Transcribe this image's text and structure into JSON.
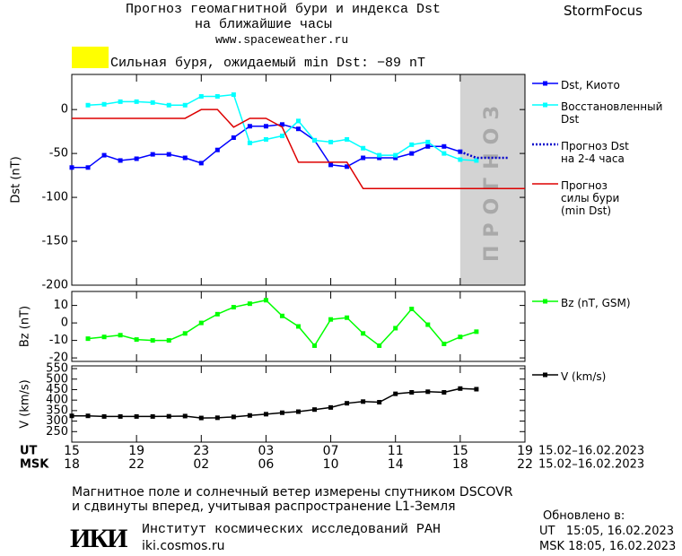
{
  "header": {
    "title": "Прогноз геомагнитной бури и индекса Dst",
    "subtitle": "на ближайшие часы",
    "url": "www.spaceweather.ru",
    "brand": "StormFocus",
    "alert": "Сильная буря, ожидаемый min Dst: −89 nT",
    "alert_color": "#ffff00"
  },
  "chart_data": [
    {
      "type": "line",
      "ylabel": "Dst (nT)",
      "xlim": [
        0,
        28
      ],
      "ylim": [
        -200,
        40
      ],
      "xticks": [
        0,
        4,
        8,
        12,
        16,
        20,
        24,
        28
      ],
      "yticks": [
        0,
        -50,
        -100,
        -150,
        -200
      ],
      "forecast_region": {
        "xlim": [
          24,
          28
        ],
        "label": "ПРОГНОЗ",
        "color": "#d3d3d3"
      },
      "series": [
        {
          "name": "Dst, Киото",
          "color": "#0000ff",
          "marker": "square",
          "dash": false,
          "x": [
            0,
            1,
            2,
            3,
            4,
            5,
            6,
            7,
            8,
            9,
            10,
            11,
            12,
            13,
            14,
            15,
            16,
            17,
            18,
            19,
            20,
            21,
            22,
            23,
            24
          ],
          "values": [
            -66,
            -66,
            -52,
            -58,
            -56,
            -51,
            -51,
            -55,
            -61,
            -46,
            -32,
            -19,
            -19,
            -17,
            -22,
            -35,
            -63,
            -65,
            -55,
            -55,
            -55,
            -50,
            -42,
            -42,
            -48
          ]
        },
        {
          "name": "Восстановленный\nDst",
          "color": "#00ffff",
          "marker": "square",
          "dash": false,
          "x": [
            1,
            2,
            3,
            4,
            5,
            6,
            7,
            8,
            9,
            10,
            11,
            12,
            13,
            14,
            15,
            16,
            17,
            18,
            19,
            20,
            21,
            22,
            23,
            24,
            25
          ],
          "values": [
            5,
            6,
            9,
            9,
            8,
            5,
            5,
            15,
            15,
            17,
            -38,
            -34,
            -30,
            -13,
            -35,
            -37,
            -34,
            -44,
            -52,
            -52,
            -40,
            -37,
            -50,
            -57,
            -58
          ]
        },
        {
          "name": "Прогноз Dst\nна 2-4 часа",
          "color": "#0000cc",
          "marker": "none",
          "dash": true,
          "x": [
            24,
            25,
            26,
            27
          ],
          "values": [
            -48,
            -55,
            -55,
            -55
          ]
        },
        {
          "name": "Прогноз\nсилы бури\n(min Dst)",
          "color": "#dd0000",
          "marker": "none",
          "dash": false,
          "x": [
            0,
            7,
            8,
            9,
            10,
            11,
            12,
            13,
            14,
            17,
            18,
            28
          ],
          "values": [
            -10,
            -10,
            0,
            0,
            -20,
            -10,
            -10,
            -20,
            -60,
            -60,
            -90,
            -90
          ]
        }
      ]
    },
    {
      "type": "line",
      "ylabel": "Bz (nT)",
      "xlim": [
        0,
        28
      ],
      "ylim": [
        -22,
        18
      ],
      "xticks": [
        0,
        4,
        8,
        12,
        16,
        20,
        24,
        28
      ],
      "yticks": [
        10,
        0,
        -10,
        -20
      ],
      "series": [
        {
          "name": "Bz (nT, GSM)",
          "color": "#00ff00",
          "marker": "square",
          "dash": false,
          "x": [
            1,
            2,
            3,
            4,
            5,
            6,
            7,
            8,
            9,
            10,
            11,
            12,
            13,
            14,
            15,
            16,
            17,
            18,
            19,
            20,
            21,
            22,
            23,
            24,
            25
          ],
          "values": [
            -9,
            -8,
            -7,
            -9.5,
            -10,
            -10,
            -6,
            0,
            5,
            9,
            11,
            13,
            4,
            -2,
            -13,
            2,
            3,
            -6,
            -13,
            -3,
            8,
            -1,
            -12,
            -8,
            -5
          ]
        }
      ]
    },
    {
      "type": "line",
      "ylabel": "V (km/s)",
      "xlim": [
        0,
        28
      ],
      "ylim": [
        200,
        563
      ],
      "xticks": [
        {
          "value": 0,
          "label": "15"
        },
        {
          "value": 4,
          "label": "19"
        },
        {
          "value": 8,
          "label": "23"
        },
        {
          "value": 12,
          "label": "03"
        },
        {
          "value": 16,
          "label": "07"
        },
        {
          "value": 20,
          "label": "11"
        },
        {
          "value": 24,
          "label": "15"
        },
        {
          "value": 28,
          "label": "19"
        }
      ],
      "xticks_msk": [
        {
          "value": 0,
          "label": "18"
        },
        {
          "value": 4,
          "label": "22"
        },
        {
          "value": 8,
          "label": "02"
        },
        {
          "value": 12,
          "label": "06"
        },
        {
          "value": 16,
          "label": "10"
        },
        {
          "value": 20,
          "label": "14"
        },
        {
          "value": 24,
          "label": "18"
        },
        {
          "value": 28,
          "label": "22"
        }
      ],
      "x_label": "UT",
      "x2_label": "MSK",
      "date_range": "15.02–16.02.2023",
      "date_range_msk": "15.02–16.02.2023",
      "yticks": [
        550,
        500,
        450,
        400,
        350,
        300,
        250
      ],
      "series": [
        {
          "name": "V (km/s)",
          "color": "#000000",
          "marker": "square",
          "dash": false,
          "x": [
            0,
            1,
            2,
            3,
            4,
            5,
            6,
            7,
            8,
            9,
            10,
            11,
            12,
            13,
            14,
            15,
            16,
            17,
            18,
            19,
            20,
            21,
            22,
            23,
            24,
            25
          ],
          "values": [
            325,
            325,
            322,
            322,
            322,
            322,
            323,
            324,
            315,
            316,
            320,
            327,
            333,
            340,
            345,
            355,
            365,
            385,
            393,
            390,
            430,
            437,
            440,
            437,
            455,
            452
          ]
        }
      ]
    }
  ],
  "footer": {
    "note1": "Магнитное поле и солнечный ветер измерены спутником DSCOVR",
    "note2": "и сдвинуты вперед, учитывая распространение L1-Земля",
    "logo": "ИКИ",
    "institute": "Институт космических исследований РАН",
    "site": "iki.cosmos.ru",
    "updated": "Обновлено в:",
    "updated_ut": "UT   15:05, 16.02.2023",
    "updated_msk": "MSK 18:05, 16.02.2023"
  }
}
